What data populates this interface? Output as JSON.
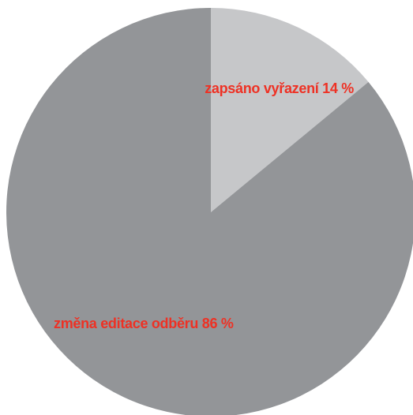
{
  "chart_data": {
    "type": "pie",
    "title": "",
    "slices": [
      {
        "label": "zapsáno vyřazení 14 %",
        "value": 14,
        "color": "#c6c7c9"
      },
      {
        "label": "změna editace odběru 86 %",
        "value": 86,
        "color": "#939598"
      }
    ],
    "start_angle": "12 o'clock",
    "direction": "clockwise",
    "label_color": "#ee3124",
    "legend": "none"
  }
}
